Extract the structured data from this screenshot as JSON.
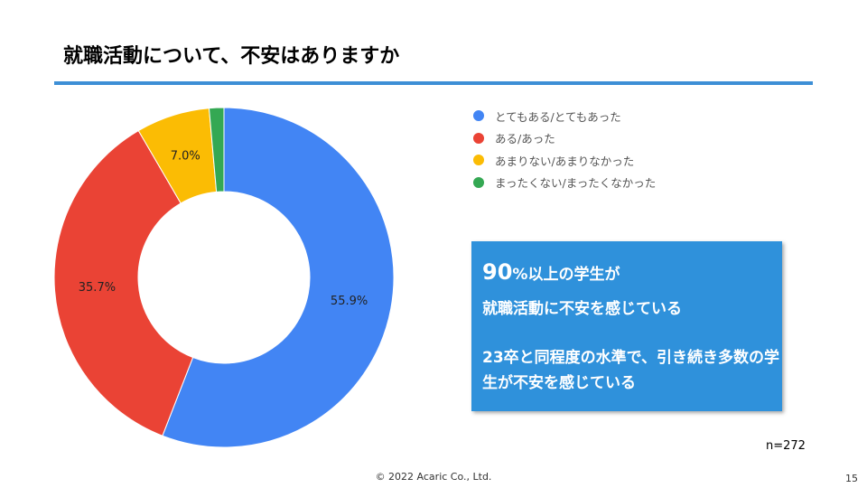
{
  "title": "就職活動について、不安はありますか",
  "chart_data": {
    "type": "pie",
    "donut": true,
    "categories": [
      "とてもある/とてもあった",
      "ある/あった",
      "あまりない/あまりなかった",
      "まったくない/まったくなかった"
    ],
    "values": [
      55.9,
      35.7,
      7.0,
      1.4
    ],
    "data_labels": [
      "55.9%",
      "35.7%",
      "7.0%",
      ""
    ],
    "colors": [
      "#4285f4",
      "#ea4335",
      "#fbbc04",
      "#34a853"
    ],
    "legend_position": "right"
  },
  "callout": {
    "big": "90",
    "pct": "%",
    "line1_rest": "以上の学生が",
    "line2": "就職活動に不安を感じている",
    "line3": "23卒と同程度の水準で、引き続き多数の学生が不安を感じている"
  },
  "sample_size": "n=272",
  "footer": {
    "copyright": "© 2022 Acaric Co., Ltd.",
    "page": "15"
  }
}
